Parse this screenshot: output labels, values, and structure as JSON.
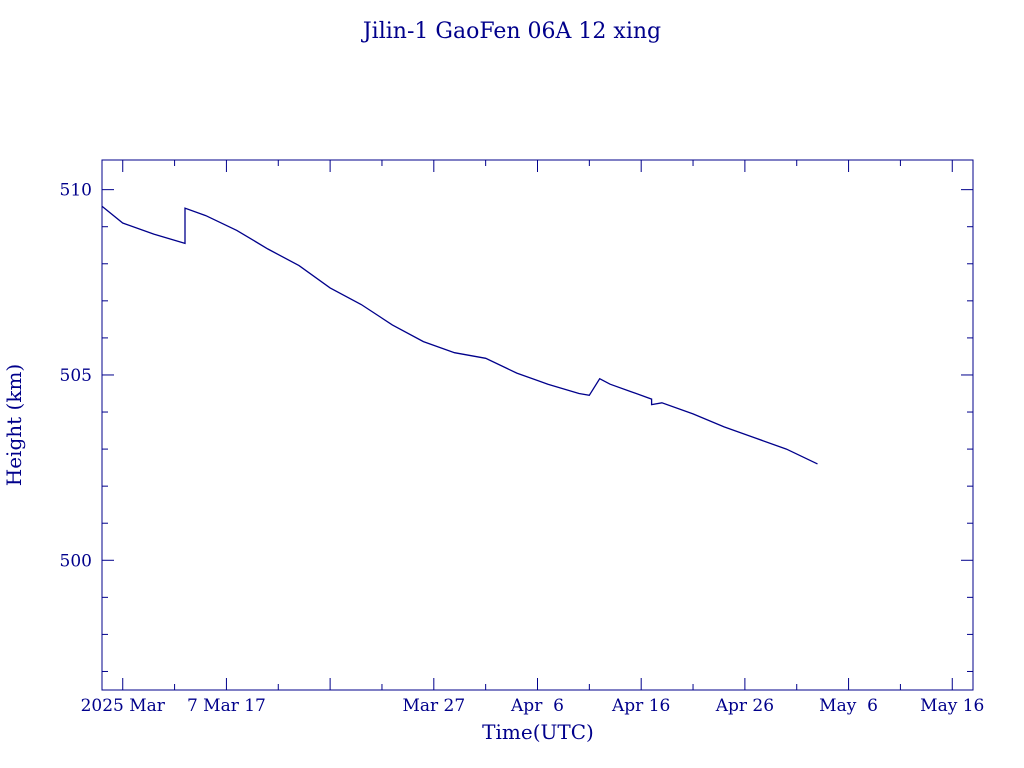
{
  "chart_data": {
    "type": "line",
    "title": "Jilin-1 GaoFen 06A 12 xing",
    "xlabel": "Time(UTC)",
    "ylabel": "Height (km)",
    "xlim": [
      "2025-02-23",
      "2025-05-18"
    ],
    "ylim": [
      496.5,
      510.8
    ],
    "y_ticks": [
      500,
      505,
      510
    ],
    "x_ticks": [
      {
        "date": "2025-02-25",
        "label": "2025 Mar"
      },
      {
        "date": "2025-03-07",
        "label": "7 Mar 17"
      },
      {
        "date": "2025-03-27",
        "label": "Mar 27"
      },
      {
        "date": "2025-04-06",
        "label": "Apr  6"
      },
      {
        "date": "2025-04-16",
        "label": "Apr 16"
      },
      {
        "date": "2025-04-26",
        "label": "Apr 26"
      },
      {
        "date": "2025-05-06",
        "label": "May  6"
      },
      {
        "date": "2025-05-16",
        "label": "May 16"
      }
    ],
    "grid": false,
    "colors": {
      "axes": "#00008b",
      "series": "#00008b"
    },
    "series": [
      {
        "x": [
          "2025-02-23",
          "2025-02-25",
          "2025-02-28",
          "2025-03-03",
          "2025-03-03",
          "2025-03-05",
          "2025-03-08",
          "2025-03-11",
          "2025-03-14",
          "2025-03-17",
          "2025-03-20",
          "2025-03-23",
          "2025-03-26",
          "2025-03-29",
          "2025-04-01",
          "2025-04-04",
          "2025-04-07",
          "2025-04-10",
          "2025-04-11",
          "2025-04-12",
          "2025-04-13",
          "2025-04-15",
          "2025-04-17",
          "2025-04-17",
          "2025-04-18",
          "2025-04-21",
          "2025-04-24",
          "2025-04-27",
          "2025-04-30",
          "2025-05-03"
        ],
        "y": [
          509.55,
          509.1,
          508.8,
          508.55,
          509.5,
          509.3,
          508.9,
          508.4,
          507.95,
          507.35,
          506.9,
          506.35,
          505.9,
          505.6,
          505.45,
          505.05,
          504.75,
          504.5,
          504.45,
          504.9,
          504.75,
          504.55,
          504.35,
          504.2,
          504.25,
          503.95,
          503.6,
          503.3,
          503.0,
          502.6
        ]
      }
    ]
  }
}
